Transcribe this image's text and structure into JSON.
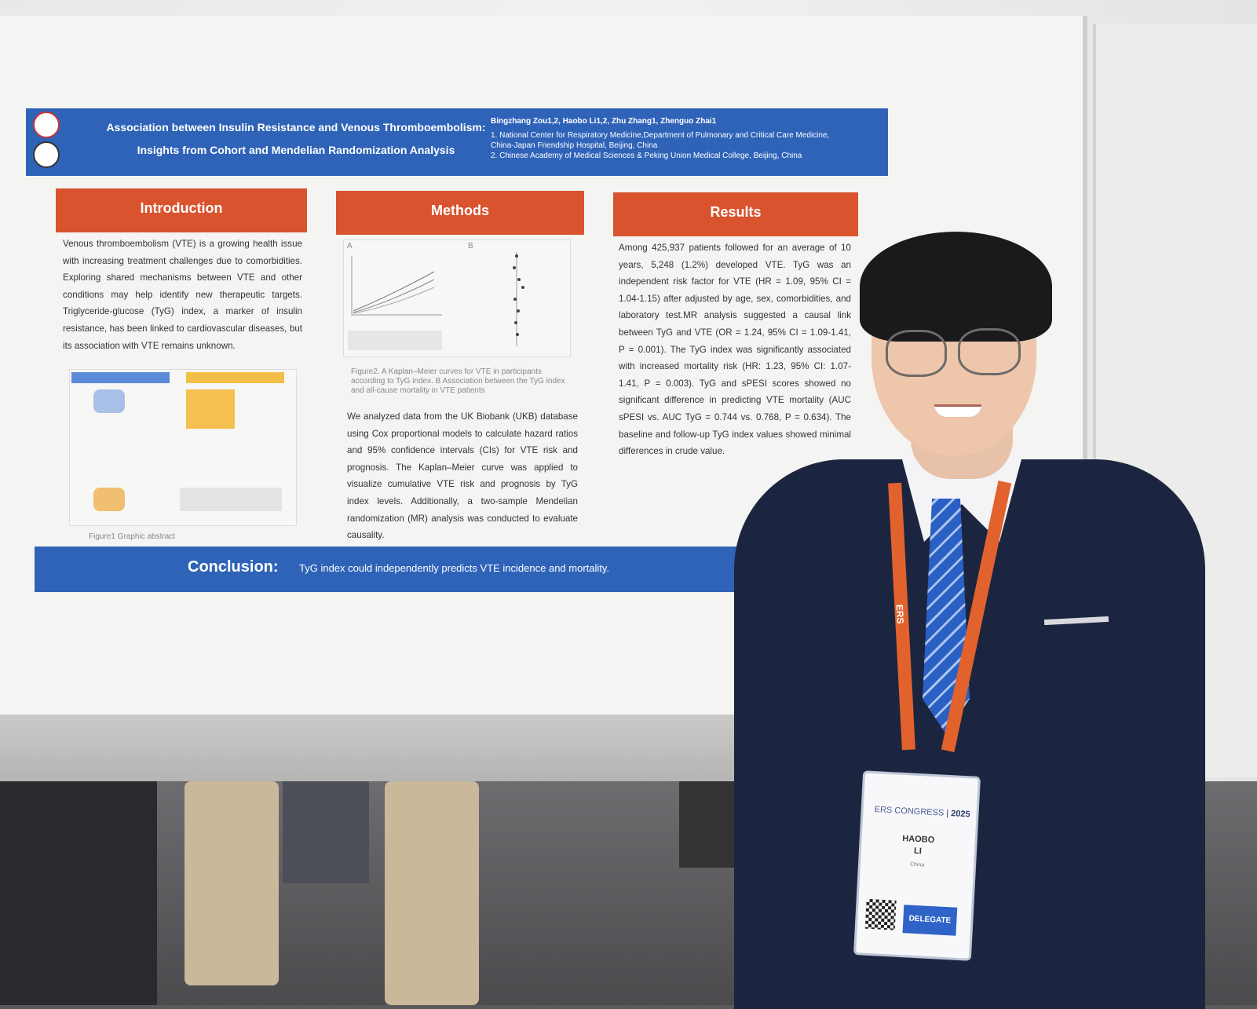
{
  "poster": {
    "title_line1": "Association between Insulin Resistance and Venous Thromboembolism:",
    "title_line2": "Insights from Cohort and Mendelian Randomization Analysis",
    "authors": "Bingzhang Zou1,2, Haobo Li1,2, Zhu Zhang1, Zhenguo Zhai1",
    "affiliation1": "1. National Center for Respiratory Medicine,Department of Pulmonary and Critical Care Medicine,",
    "affiliation1b": "China-Japan Friendship Hospital, Beijing, China",
    "affiliation2": "2. Chinese Academy of Medical Sciences & Peking Union Medical College, Beijing, China",
    "introduction": {
      "heading": "Introduction",
      "text": "Venous thromboembolism (VTE) is a growing health issue with increasing treatment challenges due to comorbidities. Exploring shared mechanisms between VTE and other conditions may help identify new therapeutic targets. Triglyceride-glucose (TyG) index, a marker of insulin resistance, has been linked to cardiovascular diseases, but its association with VTE remains unknown.",
      "figure_caption": "Figure1 Graphic abstract"
    },
    "methods": {
      "heading": "Methods",
      "figure_caption": "Figure2. A Kaplan–Meier curves for VTE in participants according to TyG index. B Association between the TyG index and all-cause mortality in VTE patients",
      "panel_a": "A",
      "panel_b": "B",
      "text": "We analyzed data from the UK Biobank (UKB) database using Cox proportional models to calculate hazard ratios and 95% confidence intervals (CIs) for VTE risk and prognosis. The Kaplan–Meier curve was applied to visualize cumulative VTE risk and prognosis by TyG index levels. Additionally, a two-sample Mendelian randomization (MR) analysis was conducted to evaluate causality."
    },
    "results": {
      "heading": "Results",
      "text": "Among 425,937 patients followed for an average of 10 years, 5,248 (1.2%) developed VTE. TyG was an independent risk factor for VTE (HR = 1.09, 95% CI = 1.04-1.15) after adjusted by age, sex, comorbidities, and laboratory test.MR analysis suggested a causal link between TyG and VTE (OR = 1.24, 95% CI = 1.09-1.41, P = 0.001). The TyG index was significantly associated with increased mortality risk (HR: 1.23, 95% CI: 1.07-1.41, P = 0.003). TyG and sPESI scores showed no significant difference in predicting VTE mortality (AUC sPESI vs. AUC TyG = 0.744 vs. 0.768, P = 0.634). The baseline and follow-up TyG index values showed minimal differences in crude value."
    },
    "conclusion": {
      "heading": "Conclusion:",
      "text": "TyG index could independently predicts VTE incidence and mortality."
    }
  },
  "lanyard": {
    "text": "ERS"
  },
  "badge": {
    "event": "ERS CONGRESS",
    "year": "2025",
    "first_name": "HAOBO",
    "last_name": "LI",
    "country": "China",
    "role": "DELEGATE"
  },
  "colors": {
    "poster_blue": "#2f63b8",
    "section_orange": "#d9532e",
    "suit": "#1c2540",
    "lanyard": "#e2622d",
    "tie": "#2a5fc4"
  }
}
